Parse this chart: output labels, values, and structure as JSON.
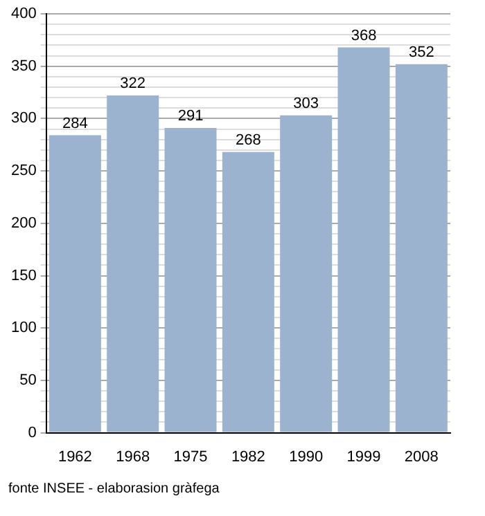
{
  "chart_data": {
    "type": "bar",
    "categories": [
      "1962",
      "1968",
      "1975",
      "1982",
      "1990",
      "1999",
      "2008"
    ],
    "values": [
      284,
      322,
      291,
      268,
      303,
      368,
      352
    ],
    "color": "#9bb3cf",
    "data_labels": true,
    "grid": "y",
    "legend": false,
    "ylim": [
      0,
      400
    ],
    "yticks": [
      0,
      {
        "value": 10,
        "label": null
      },
      {
        "value": 20,
        "label": null
      },
      {
        "value": 30,
        "label": null
      },
      {
        "value": 40,
        "label": null
      },
      50,
      {
        "value": 60,
        "label": null
      },
      {
        "value": 70,
        "label": null
      },
      {
        "value": 80,
        "label": null
      },
      {
        "value": 90,
        "label": null
      },
      100,
      {
        "value": 110,
        "label": null
      },
      {
        "value": 120,
        "label": null
      },
      {
        "value": 130,
        "label": null
      },
      {
        "value": 140,
        "label": null
      },
      150,
      {
        "value": 160,
        "label": null
      },
      {
        "value": 170,
        "label": null
      },
      {
        "value": 180,
        "label": null
      },
      {
        "value": 190,
        "label": null
      },
      200,
      {
        "value": 210,
        "label": null
      },
      {
        "value": 220,
        "label": null
      },
      {
        "value": 230,
        "label": null
      },
      {
        "value": 240,
        "label": null
      },
      250,
      {
        "value": 260,
        "label": null
      },
      {
        "value": 270,
        "label": null
      },
      {
        "value": 280,
        "label": null
      },
      {
        "value": 290,
        "label": null
      },
      300,
      {
        "value": 310,
        "label": null
      },
      {
        "value": 320,
        "label": null
      },
      {
        "value": 330,
        "label": null
      },
      {
        "value": 340,
        "label": null
      },
      350,
      {
        "value": 360,
        "label": null
      },
      {
        "value": 370,
        "label": null
      },
      {
        "value": 380,
        "label": null
      },
      {
        "value": 390,
        "label": null
      },
      400
    ],
    "annotations": [
      "fonte INSEE - elaborasion gràfega"
    ]
  }
}
